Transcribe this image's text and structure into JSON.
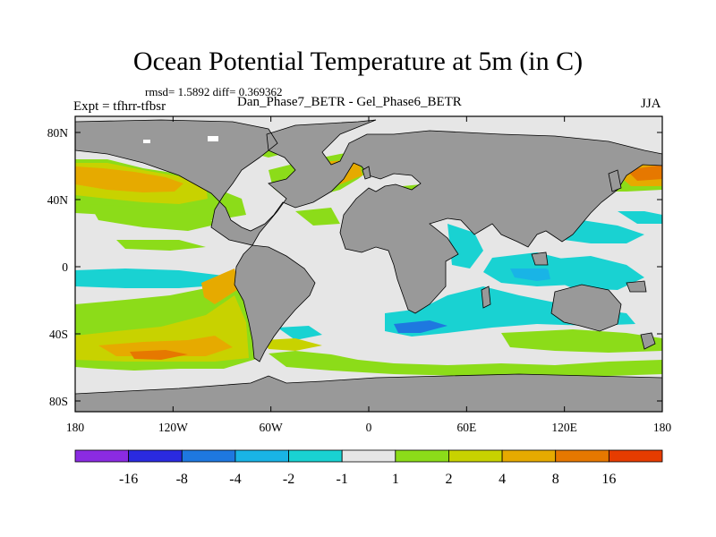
{
  "title": "Ocean Potential Temperature at 5m (in C)",
  "stats": "rmsd= 1.5892 diff= 0.369362",
  "expt": "Expt = tfhrr-tfbsr",
  "case_line": "Dan_Phase7_BETR - Gel_Phase6_BETR",
  "season": "JJA",
  "y_ticks": [
    {
      "label": "80N",
      "lat": 80
    },
    {
      "label": "40N",
      "lat": 40
    },
    {
      "label": "0",
      "lat": 0
    },
    {
      "label": "40S",
      "lat": -40
    },
    {
      "label": "80S",
      "lat": -80
    }
  ],
  "x_ticks": [
    {
      "label": "180",
      "lon": -180
    },
    {
      "label": "120W",
      "lon": -120
    },
    {
      "label": "60W",
      "lon": -60
    },
    {
      "label": "0",
      "lon": 0
    },
    {
      "label": "60E",
      "lon": 60
    },
    {
      "label": "120E",
      "lon": 120
    },
    {
      "label": "180",
      "lon": 180
    }
  ],
  "colorbar": {
    "colors": [
      "#8b2be2",
      "#2a2ae0",
      "#1e78e0",
      "#19b4e6",
      "#19d2d2",
      "#e6e6e6",
      "#8cdc19",
      "#c8d200",
      "#e6aa00",
      "#e67800",
      "#e63c00"
    ],
    "labels": [
      "-16",
      "-8",
      "-4",
      "-2",
      "-1",
      "1",
      "2",
      "4",
      "8",
      "16"
    ]
  },
  "colors": {
    "land": "#999999",
    "ocean_neutral": "#e6e6e6",
    "frame": "#000000"
  }
}
